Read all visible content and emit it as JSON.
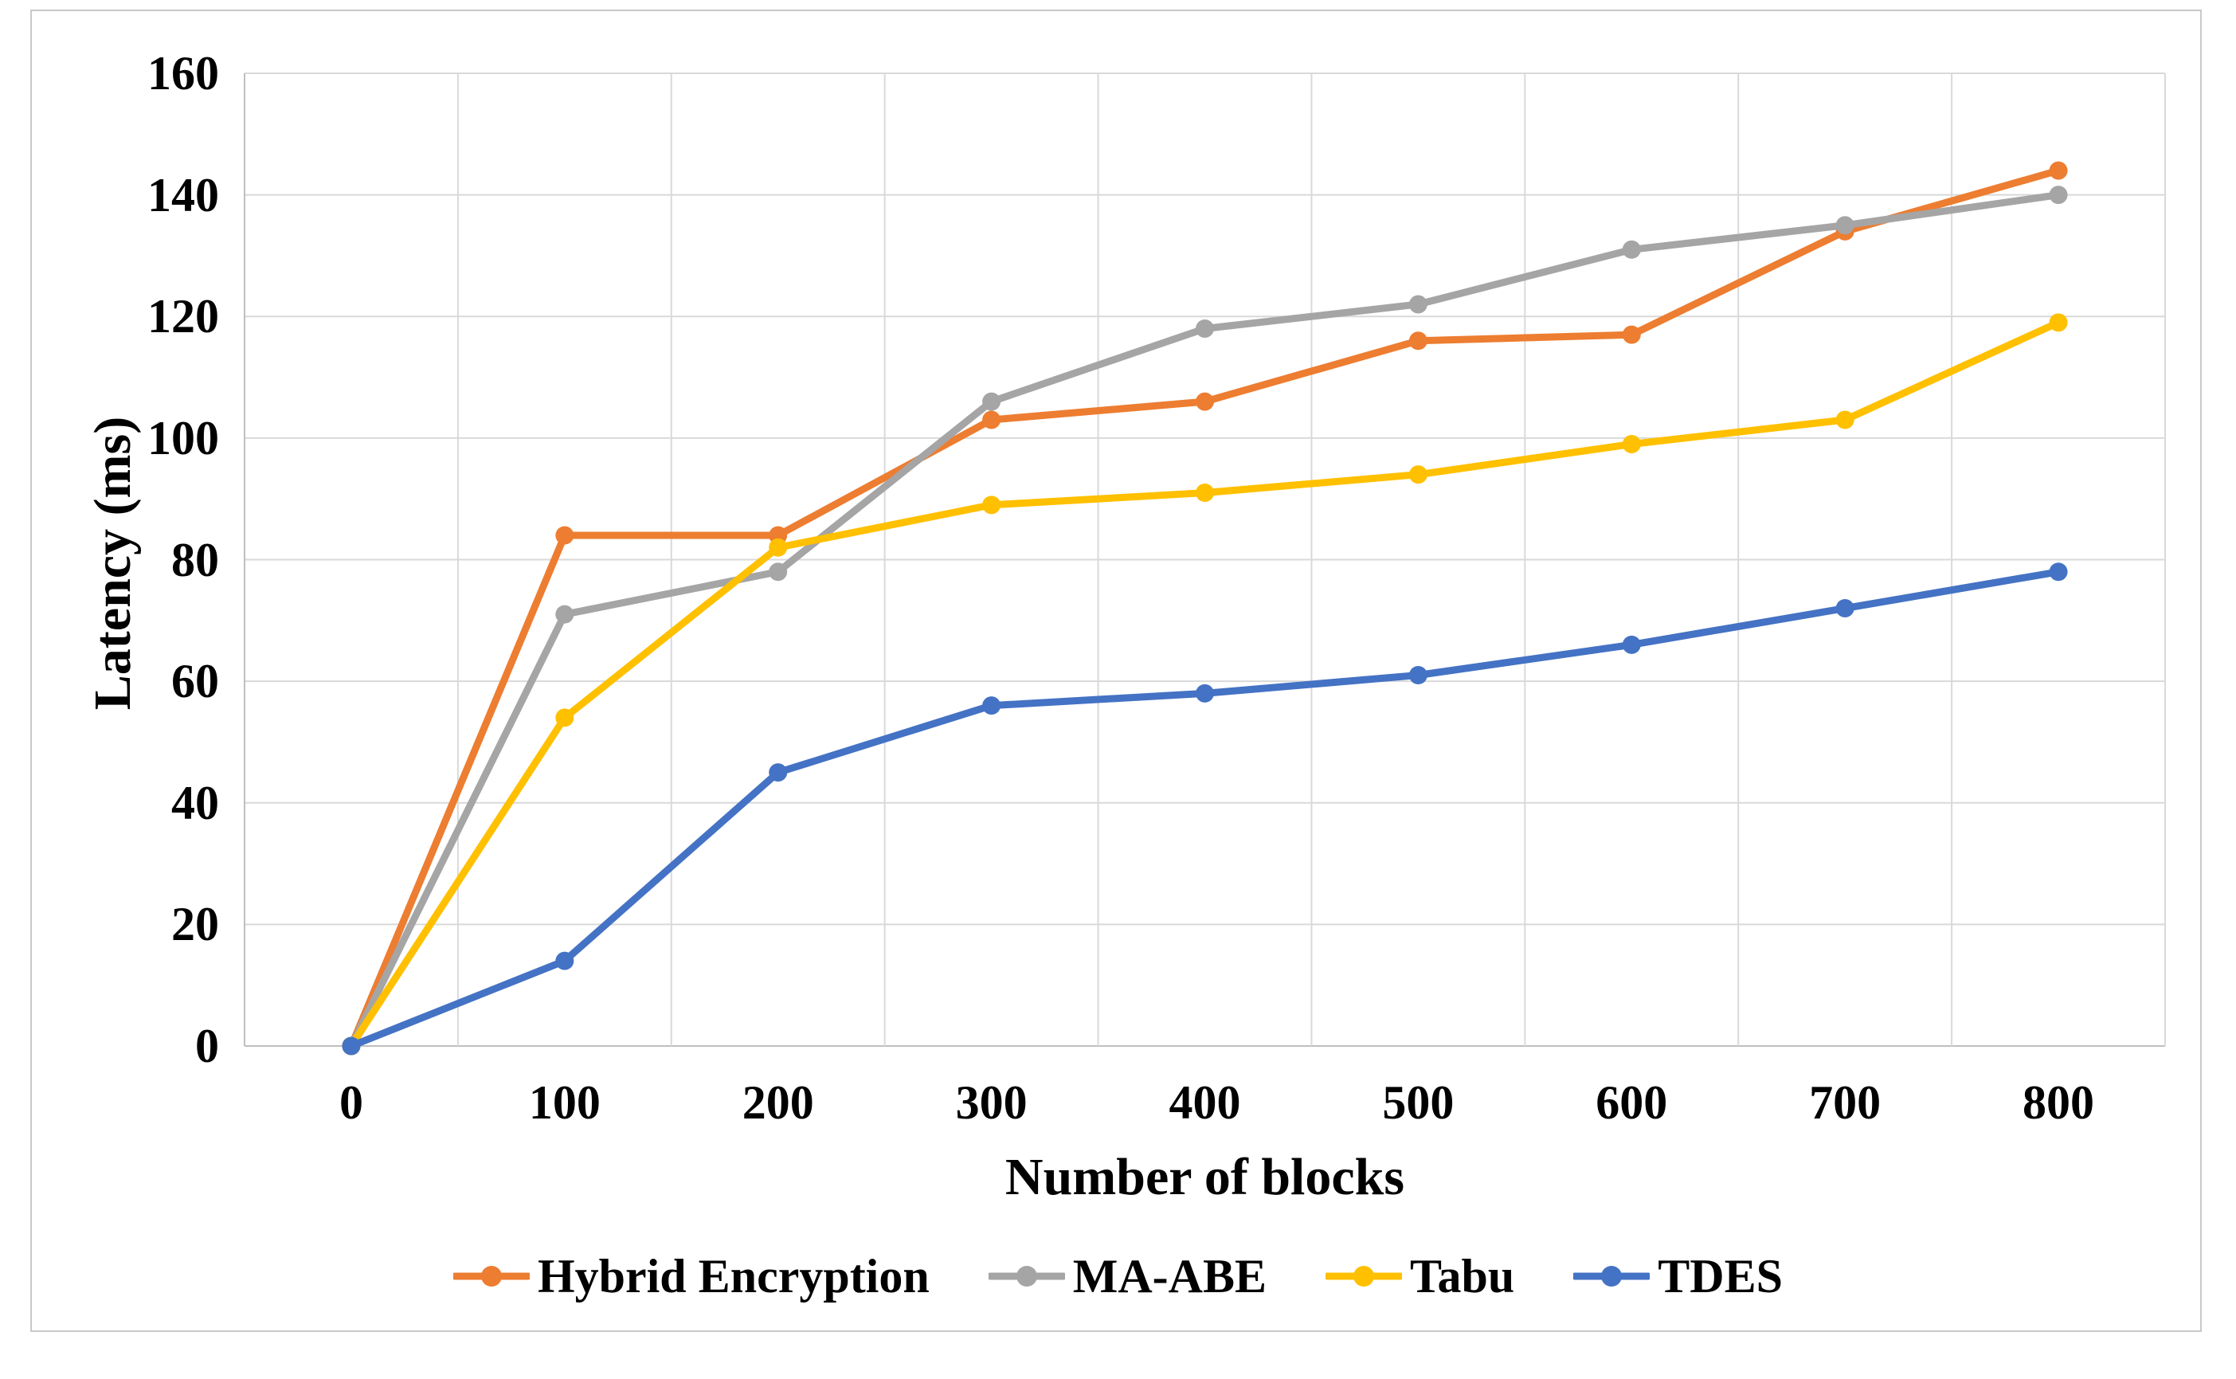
{
  "chart_data": {
    "type": "line",
    "title": "",
    "xlabel": "Number of blocks",
    "ylabel": "Latency (ms)",
    "categories": [
      "0",
      "100",
      "200",
      "300",
      "400",
      "500",
      "600",
      "700",
      "800"
    ],
    "ylim": [
      0,
      160
    ],
    "ytick_step": 20,
    "grid": true,
    "legend_position": "bottom",
    "series": [
      {
        "name": "Hybrid Encryption",
        "color": "#ED7D31",
        "values": [
          0,
          84,
          84,
          103,
          106,
          116,
          117,
          134,
          144
        ]
      },
      {
        "name": "MA-ABE",
        "color": "#A5A5A5",
        "values": [
          0,
          71,
          78,
          106,
          118,
          122,
          131,
          135,
          140
        ]
      },
      {
        "name": "Tabu",
        "color": "#FFC000",
        "values": [
          0,
          54,
          82,
          89,
          91,
          94,
          99,
          103,
          119
        ]
      },
      {
        "name": "TDES",
        "color": "#4472C4",
        "values": [
          0,
          14,
          45,
          56,
          58,
          61,
          66,
          72,
          78
        ]
      }
    ]
  },
  "colors": {
    "gridline": "#D9D9D9",
    "axis_line": "#BFBFBF",
    "frame_border": "#C9C9C9",
    "text": "#000000",
    "background": "#FFFFFF"
  }
}
